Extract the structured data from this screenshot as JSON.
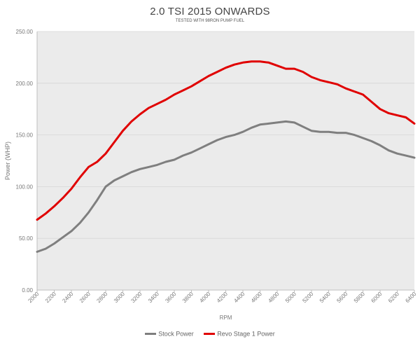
{
  "chart_data": {
    "type": "line",
    "title": "2.0 TSI 2015 ONWARDS",
    "subtitle": "TESTED WITH 98RON PUMP FUEL",
    "xlabel": "RPM",
    "ylabel": "Power (WHP)",
    "ylim": [
      0,
      250
    ],
    "xlim": [
      2000,
      6400
    ],
    "y_ticks": [
      "0.00",
      "50.00",
      "100.00",
      "150.00",
      "200.00",
      "250.00"
    ],
    "x_ticks": [
      "2000",
      "2200",
      "2400",
      "2600",
      "2800",
      "3000",
      "3200",
      "3400",
      "3600",
      "3800",
      "4000",
      "4200",
      "4400",
      "4600",
      "4800",
      "5000",
      "5200",
      "5400",
      "5600",
      "5800",
      "6000",
      "6200",
      "6400"
    ],
    "grid": "horizontal",
    "legend_position": "bottom",
    "colors": {
      "plot_background": "#ebebeb",
      "grid": "#d6d6d6"
    },
    "series": [
      {
        "name": "Stock Power",
        "color": "#7f7f7f",
        "x": [
          2000,
          2100,
          2200,
          2300,
          2400,
          2500,
          2600,
          2700,
          2800,
          2900,
          3000,
          3100,
          3200,
          3300,
          3400,
          3500,
          3600,
          3700,
          3800,
          3900,
          4000,
          4100,
          4200,
          4300,
          4400,
          4500,
          4600,
          4700,
          4800,
          4900,
          5000,
          5100,
          5200,
          5300,
          5400,
          5500,
          5600,
          5700,
          5800,
          5900,
          6000,
          6100,
          6200,
          6300,
          6400
        ],
        "values": [
          37,
          40,
          45,
          51,
          57,
          65,
          75,
          87,
          100,
          106,
          110,
          114,
          117,
          119,
          121,
          124,
          126,
          130,
          133,
          137,
          141,
          145,
          148,
          150,
          153,
          157,
          160,
          161,
          162,
          163,
          162,
          158,
          154,
          153,
          153,
          152,
          152,
          150,
          147,
          144,
          140,
          135,
          132,
          130,
          128
        ]
      },
      {
        "name": "Revo Stage 1 Power",
        "color": "#e00000",
        "x": [
          2000,
          2100,
          2200,
          2300,
          2400,
          2500,
          2600,
          2700,
          2800,
          2900,
          3000,
          3100,
          3200,
          3300,
          3400,
          3500,
          3600,
          3700,
          3800,
          3900,
          4000,
          4100,
          4200,
          4300,
          4400,
          4500,
          4600,
          4700,
          4800,
          4900,
          5000,
          5100,
          5200,
          5300,
          5400,
          5500,
          5600,
          5700,
          5800,
          5900,
          6000,
          6100,
          6200,
          6300,
          6400
        ],
        "values": [
          68,
          74,
          81,
          89,
          98,
          109,
          119,
          124,
          132,
          143,
          154,
          163,
          170,
          176,
          180,
          184,
          189,
          193,
          197,
          202,
          207,
          211,
          215,
          218,
          220,
          221,
          221,
          220,
          217,
          214,
          214,
          211,
          206,
          203,
          201,
          199,
          195,
          192,
          189,
          182,
          175,
          171,
          169,
          167,
          161
        ]
      }
    ]
  }
}
